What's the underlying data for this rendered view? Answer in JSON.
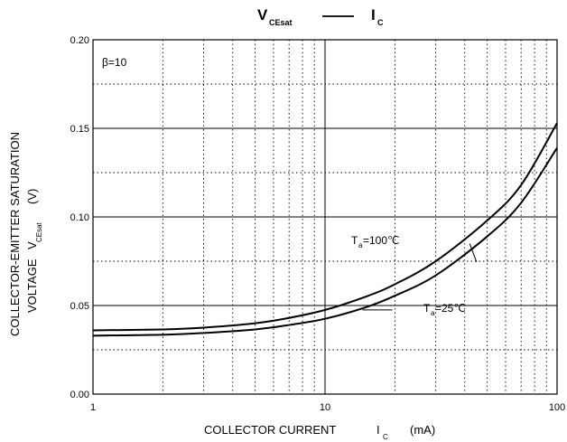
{
  "chart_data": {
    "type": "line",
    "title": {
      "left_main": "V",
      "left_sub": "CEsat",
      "right_main": "I",
      "right_sub": "C"
    },
    "xlabel": {
      "main": "COLLECTOR CURRENT",
      "symbol": "I",
      "sub": "C",
      "unit": "(mA)"
    },
    "ylabel": {
      "line1": "COLLECTOR-EMITTER SATURATION",
      "line2_prefix": "VOLTAGE",
      "symbol": "V",
      "sub": "CEsat",
      "unit": "(V)"
    },
    "x_scale": "log",
    "xlim": [
      1,
      100
    ],
    "ylim": [
      0,
      0.2
    ],
    "x_ticks": [
      1,
      10,
      100
    ],
    "x_tick_labels": [
      "1",
      "10",
      "100"
    ],
    "y_ticks": [
      0,
      0.05,
      0.1,
      0.15,
      0.2
    ],
    "y_tick_labels": [
      "0.00",
      "0.05",
      "0.10",
      "0.15",
      "0.20"
    ],
    "grid": "major solid, minor dotted",
    "annotation": "β=10",
    "series": [
      {
        "label_main": "T",
        "label_sub": "a",
        "label_value": "=100℃",
        "x": [
          1,
          2,
          3,
          5,
          7,
          10,
          15,
          20,
          30,
          50,
          70,
          100
        ],
        "y": [
          0.036,
          0.0365,
          0.0375,
          0.04,
          0.043,
          0.0475,
          0.055,
          0.062,
          0.075,
          0.098,
          0.118,
          0.153
        ]
      },
      {
        "label_main": "T",
        "label_sub": "a",
        "label_value": "=25℃",
        "x": [
          1,
          2,
          3,
          5,
          7,
          10,
          15,
          20,
          30,
          50,
          70,
          100
        ],
        "y": [
          0.033,
          0.0335,
          0.0345,
          0.0365,
          0.039,
          0.0425,
          0.049,
          0.0555,
          0.067,
          0.089,
          0.108,
          0.139
        ]
      }
    ]
  }
}
